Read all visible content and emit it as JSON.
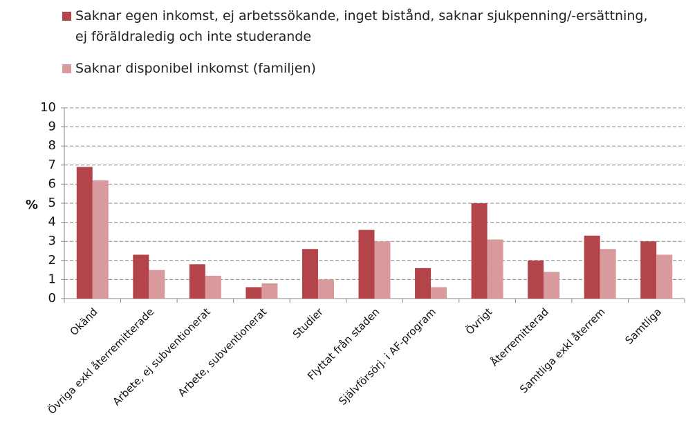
{
  "chart_data": {
    "type": "bar",
    "ylabel": "%",
    "categories": [
      "Okänd",
      "Övriga exkl återremitterade",
      "Arbete, ej subventionerat",
      "Arbete, subventionerat",
      "Studier",
      "Flyttat från staden",
      "Självförsörj. i AF-program",
      "Övrigt",
      "Återremitterad",
      "Samtliga exkl återrem",
      "Samtliga"
    ],
    "series": [
      {
        "name": "Saknar egen inkomst, ej arbetssökande, inget bistånd, saknar sjukpenning/-ersättning, ej föräldraledig och inte studerande",
        "color": "#b3454a",
        "values": [
          6.9,
          2.3,
          1.8,
          0.6,
          2.6,
          3.6,
          1.6,
          5.0,
          2.0,
          3.3,
          3.0
        ]
      },
      {
        "name": "Saknar disponibel inkomst (familjen)",
        "color": "#d99a9d",
        "values": [
          6.2,
          1.5,
          1.2,
          0.8,
          1.0,
          3.0,
          0.6,
          3.1,
          1.4,
          2.6,
          2.3
        ]
      }
    ],
    "ylim": [
      0,
      10
    ],
    "yticks": [
      0,
      1,
      2,
      3,
      4,
      5,
      6,
      7,
      8,
      9,
      10
    ],
    "grid": true
  }
}
